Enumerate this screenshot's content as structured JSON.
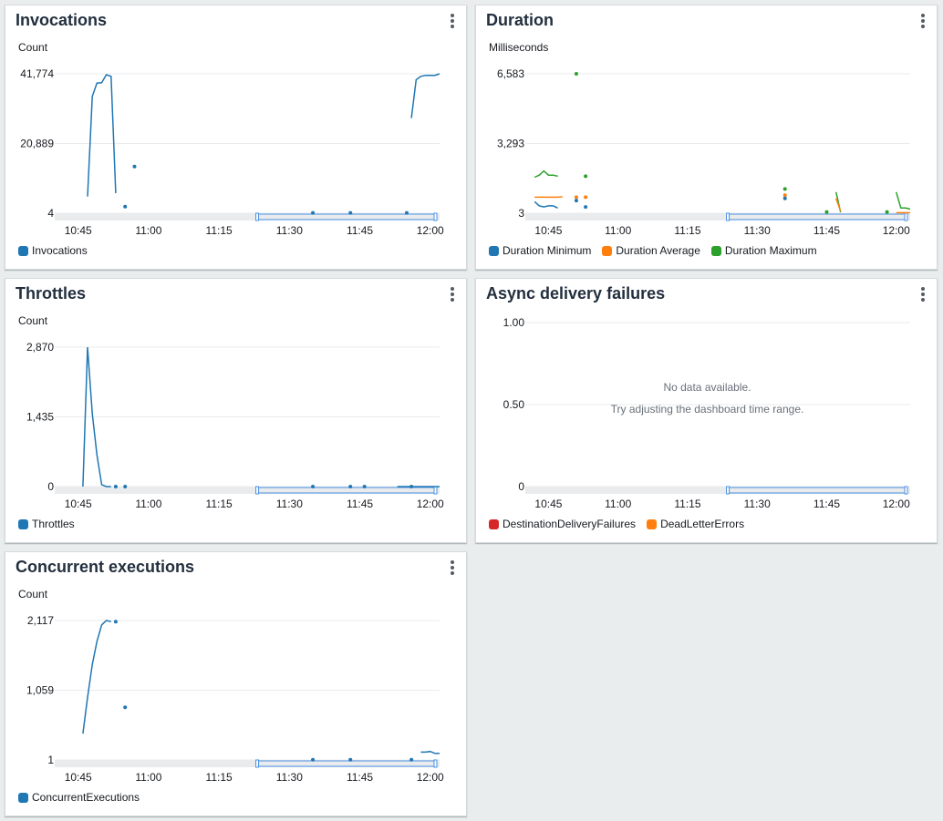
{
  "colors": {
    "blue": "#1f77b4",
    "orange": "#ff7f0e",
    "green": "#2ca02c",
    "red": "#d62728",
    "grid": "#e9ebed",
    "brush_fill": "#e9ebed",
    "brush_stroke": "#4a90e2"
  },
  "x_ticks": [
    "10:45",
    "11:00",
    "11:15",
    "11:30",
    "11:45",
    "12:00"
  ],
  "panels": {
    "invocations": {
      "title": "Invocations",
      "unit": "Count",
      "legend": [
        {
          "label": "Invocations",
          "color": "#1f77b4"
        }
      ]
    },
    "duration": {
      "title": "Duration",
      "unit": "Milliseconds",
      "legend": [
        {
          "label": "Duration Minimum",
          "color": "#1f77b4"
        },
        {
          "label": "Duration Average",
          "color": "#ff7f0e"
        },
        {
          "label": "Duration Maximum",
          "color": "#2ca02c"
        }
      ]
    },
    "throttles": {
      "title": "Throttles",
      "unit": "Count",
      "legend": [
        {
          "label": "Throttles",
          "color": "#1f77b4"
        }
      ]
    },
    "async": {
      "title": "Async delivery failures",
      "unit": "",
      "no_data": "No data available.",
      "no_data_hint": "Try adjusting the dashboard time range.",
      "legend": [
        {
          "label": "DestinationDeliveryFailures",
          "color": "#d62728"
        },
        {
          "label": "DeadLetterErrors",
          "color": "#ff7f0e"
        }
      ]
    },
    "concurrent": {
      "title": "Concurrent executions",
      "unit": "Count",
      "legend": [
        {
          "label": "ConcurrentExecutions",
          "color": "#1f77b4"
        }
      ]
    }
  },
  "chart_data": [
    {
      "id": "invocations",
      "type": "line",
      "title": "Invocations",
      "ylabel": "Count",
      "y_ticks": [
        "41,774",
        "20,889",
        "4"
      ],
      "ylim": [
        4,
        41774
      ],
      "xlim": [
        "10:40",
        "12:02"
      ],
      "x_tick_labels": [
        "10:45",
        "11:00",
        "11:15",
        "11:30",
        "11:45",
        "12:00"
      ],
      "series": [
        {
          "name": "Invocations",
          "color": "#1f77b4",
          "segments": [
            [
              [
                "10:47",
                5000
              ],
              [
                "10:48",
                35000
              ],
              [
                "10:49",
                39000
              ],
              [
                "10:50",
                39100
              ],
              [
                "10:51",
                41500
              ],
              [
                "10:52",
                41000
              ],
              [
                "10:53",
                6000
              ]
            ],
            [
              [
                "11:56",
                28500
              ],
              [
                "11:57",
                40000
              ],
              [
                "11:58",
                41000
              ],
              [
                "11:59",
                41300
              ],
              [
                "12:00",
                41300
              ],
              [
                "12:01",
                41300
              ],
              [
                "12:02",
                41774
              ]
            ]
          ],
          "points": [
            [
              "10:55",
              2000
            ],
            [
              "10:57",
              14000
            ],
            [
              "11:35",
              100
            ],
            [
              "11:43",
              100
            ],
            [
              "11:55",
              100
            ]
          ]
        }
      ]
    },
    {
      "id": "duration",
      "type": "line",
      "title": "Duration",
      "ylabel": "Milliseconds",
      "y_ticks": [
        "6,583",
        "3,293",
        "3"
      ],
      "ylim": [
        3,
        6583
      ],
      "xlim": [
        "10:40",
        "12:03"
      ],
      "x_tick_labels": [
        "10:45",
        "11:00",
        "11:15",
        "11:30",
        "11:45",
        "12:00"
      ],
      "series": [
        {
          "name": "Duration Maximum",
          "color": "#2ca02c",
          "segments": [
            [
              [
                "10:42",
                1700
              ],
              [
                "10:43",
                1800
              ],
              [
                "10:44",
                2000
              ],
              [
                "10:45",
                1800
              ],
              [
                "10:46",
                1800
              ],
              [
                "10:47",
                1750
              ]
            ],
            [
              [
                "11:47",
                1000
              ],
              [
                "11:48",
                50
              ]
            ],
            [
              [
                "12:00",
                1000
              ],
              [
                "12:01",
                250
              ],
              [
                "12:02",
                250
              ],
              [
                "12:03",
                200
              ]
            ]
          ],
          "points": [
            [
              "10:51",
              6583
            ],
            [
              "10:53",
              1750
            ],
            [
              "11:36",
              1150
            ],
            [
              "11:45",
              60
            ],
            [
              "11:58",
              60
            ]
          ]
        },
        {
          "name": "Duration Average",
          "color": "#ff7f0e",
          "segments": [
            [
              [
                "10:42",
                760
              ],
              [
                "10:47",
                760
              ],
              [
                "10:48",
                780
              ]
            ],
            [
              [
                "11:47",
                700
              ],
              [
                "11:48",
                100
              ]
            ],
            [
              [
                "12:00",
                30
              ],
              [
                "12:03",
                30
              ]
            ]
          ],
          "points": [
            [
              "10:51",
              760
            ],
            [
              "10:53",
              760
            ],
            [
              "11:36",
              850
            ]
          ]
        },
        {
          "name": "Duration Minimum",
          "color": "#1f77b4",
          "segments": [
            [
              [
                "10:42",
                550
              ],
              [
                "10:43",
                350
              ],
              [
                "10:44",
                300
              ],
              [
                "10:45",
                350
              ],
              [
                "10:46",
                350
              ],
              [
                "10:47",
                250
              ]
            ]
          ],
          "points": [
            [
              "10:51",
              600
            ],
            [
              "10:53",
              300
            ],
            [
              "11:36",
              700
            ]
          ]
        }
      ]
    },
    {
      "id": "throttles",
      "type": "line",
      "title": "Throttles",
      "ylabel": "Count",
      "y_ticks": [
        "2,870",
        "1,435",
        "0"
      ],
      "ylim": [
        0,
        2870
      ],
      "xlim": [
        "10:40",
        "12:02"
      ],
      "x_tick_labels": [
        "10:45",
        "11:00",
        "11:15",
        "11:30",
        "11:45",
        "12:00"
      ],
      "series": [
        {
          "name": "Throttles",
          "color": "#1f77b4",
          "segments": [
            [
              [
                "10:46",
                0
              ],
              [
                "10:47",
                2870
              ],
              [
                "10:48",
                1500
              ],
              [
                "10:49",
                650
              ],
              [
                "10:50",
                40
              ],
              [
                "10:51",
                0
              ],
              [
                "10:52",
                0
              ]
            ],
            [
              [
                "11:53",
                0
              ],
              [
                "12:02",
                0
              ]
            ]
          ],
          "points": [
            [
              "10:53",
              0
            ],
            [
              "10:55",
              0
            ],
            [
              "11:35",
              0
            ],
            [
              "11:43",
              0
            ],
            [
              "11:46",
              0
            ],
            [
              "11:56",
              0
            ]
          ]
        }
      ]
    },
    {
      "id": "async",
      "type": "line",
      "title": "Async delivery failures",
      "ylabel": "",
      "y_ticks": [
        "1.00",
        "0.50",
        "0"
      ],
      "ylim": [
        0,
        1
      ],
      "xlim": [
        "10:40",
        "12:03"
      ],
      "x_tick_labels": [
        "10:45",
        "11:00",
        "11:15",
        "11:30",
        "11:45",
        "12:00"
      ],
      "series": []
    },
    {
      "id": "concurrent",
      "type": "line",
      "title": "Concurrent executions",
      "ylabel": "Count",
      "y_ticks": [
        "2,117",
        "1,059",
        "1"
      ],
      "ylim": [
        1,
        2117
      ],
      "xlim": [
        "10:40",
        "12:02"
      ],
      "x_tick_labels": [
        "10:45",
        "11:00",
        "11:15",
        "11:30",
        "11:45",
        "12:00"
      ],
      "series": [
        {
          "name": "ConcurrentExecutions",
          "color": "#1f77b4",
          "segments": [
            [
              [
                "10:46",
                400
              ],
              [
                "10:47",
                950
              ],
              [
                "10:48",
                1450
              ],
              [
                "10:49",
                1800
              ],
              [
                "10:50",
                2050
              ],
              [
                "10:51",
                2117
              ],
              [
                "10:52",
                2100
              ]
            ],
            [
              [
                "11:58",
                120
              ],
              [
                "11:59",
                120
              ],
              [
                "12:00",
                130
              ],
              [
                "12:01",
                100
              ],
              [
                "12:02",
                100
              ]
            ]
          ],
          "points": [
            [
              "10:53",
              2100
            ],
            [
              "10:55",
              800
            ],
            [
              "11:35",
              5
            ],
            [
              "11:43",
              5
            ],
            [
              "11:56",
              5
            ]
          ]
        }
      ]
    }
  ]
}
